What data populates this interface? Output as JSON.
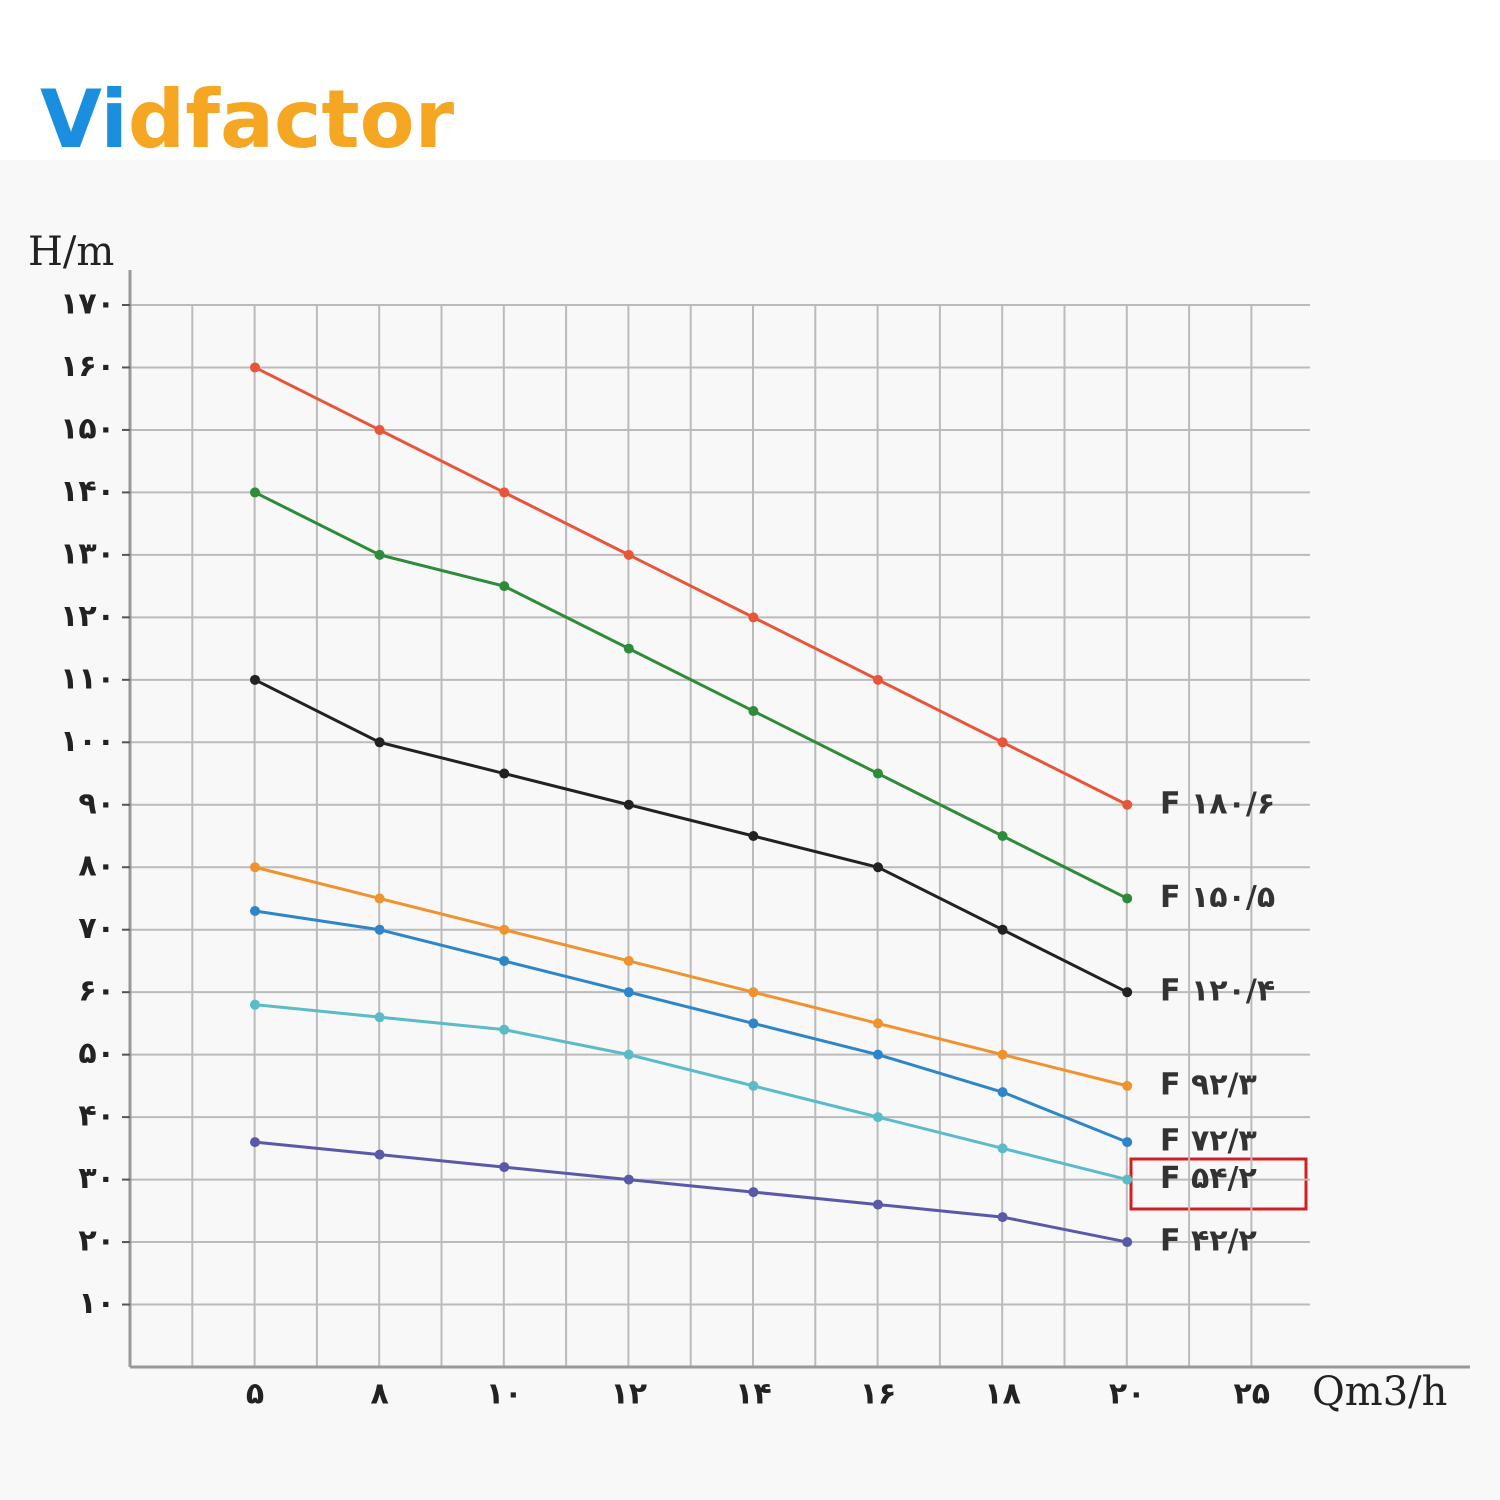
{
  "logo": "Vidfactor",
  "chart_data": {
    "type": "line",
    "y_label": "H/m",
    "x_label": "Qm3/h",
    "categories": [
      "۵",
      "۸",
      "۱۰",
      "۱۲",
      "۱۴",
      "۱۶",
      "۱۸",
      "۲۰",
      "۲۵"
    ],
    "ylim": [
      0,
      170
    ],
    "yticks": [
      {
        "value": 10,
        "label": "۱۰"
      },
      {
        "value": 20,
        "label": "۲۰"
      },
      {
        "value": 30,
        "label": "۳۰"
      },
      {
        "value": 40,
        "label": "۴۰"
      },
      {
        "value": 50,
        "label": "۵۰"
      },
      {
        "value": 60,
        "label": "۶۰"
      },
      {
        "value": 70,
        "label": "۷۰"
      },
      {
        "value": 80,
        "label": "۸۰"
      },
      {
        "value": 90,
        "label": "۹۰"
      },
      {
        "value": 100,
        "label": "۱۰۰"
      },
      {
        "value": 110,
        "label": "۱۱۰"
      },
      {
        "value": 120,
        "label": "۱۲۰"
      },
      {
        "value": 130,
        "label": "۱۳۰"
      },
      {
        "value": 140,
        "label": "۱۴۰"
      },
      {
        "value": 150,
        "label": "۱۵۰"
      },
      {
        "value": 160,
        "label": "۱۶۰"
      },
      {
        "value": 170,
        "label": "۱۷۰"
      }
    ],
    "grid": true,
    "series": [
      {
        "name": "F ۱۸۰/۶",
        "color": "#e8553a",
        "values": [
          160,
          150,
          140,
          130,
          120,
          110,
          100,
          90,
          null
        ]
      },
      {
        "name": "F ۱۵۰/۵",
        "color": "#2e8b3a",
        "values": [
          140,
          130,
          125,
          115,
          105,
          95,
          85,
          75,
          null
        ]
      },
      {
        "name": "F ۱۲۰/۴",
        "color": "#222222",
        "values": [
          110,
          100,
          95,
          90,
          85,
          80,
          70,
          60,
          null
        ]
      },
      {
        "name": "F ۹۲/۳",
        "color": "#f0922e",
        "values": [
          80,
          75,
          70,
          65,
          60,
          55,
          50,
          45,
          null
        ]
      },
      {
        "name": "F ۷۲/۳",
        "color": "#2e86c8",
        "values": [
          73,
          70,
          65,
          60,
          55,
          50,
          44,
          36,
          null
        ]
      },
      {
        "name": "F ۵۴/۲",
        "color": "#5bbcc8",
        "values": [
          58,
          56,
          54,
          50,
          45,
          40,
          35,
          30,
          null
        ]
      },
      {
        "name": "F ۴۲/۲",
        "color": "#5a58a8",
        "values": [
          36,
          34,
          32,
          30,
          28,
          26,
          24,
          20,
          null
        ]
      }
    ]
  }
}
